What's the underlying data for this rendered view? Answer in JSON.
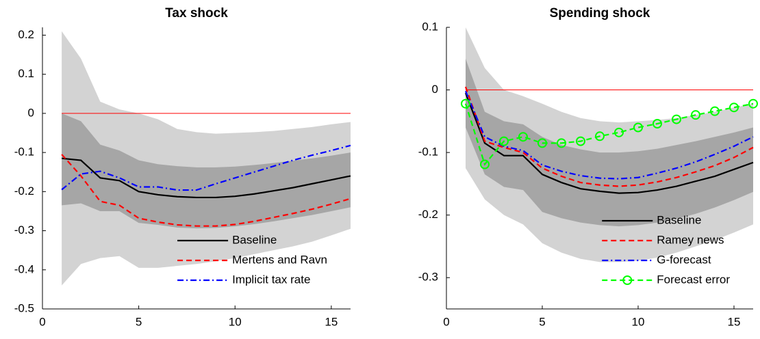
{
  "chart_data": [
    {
      "type": "line",
      "title": "Tax shock",
      "x": [
        1,
        2,
        3,
        4,
        5,
        6,
        7,
        8,
        9,
        10,
        11,
        12,
        13,
        14,
        15,
        16
      ],
      "xlim": [
        0,
        16
      ],
      "xticks": [
        0,
        5,
        10,
        15
      ],
      "ylim": [
        -0.5,
        0.22
      ],
      "yticks": [
        -0.5,
        -0.4,
        -0.3,
        -0.2,
        -0.1,
        0,
        0.1,
        0.2
      ],
      "hline": {
        "value": 0,
        "color": "#ff0000"
      },
      "legend": "lower right",
      "bands": [
        {
          "color": "#d3d3d3",
          "upper": [
            0.21,
            0.14,
            0.03,
            0.01,
            0,
            -0.015,
            -0.04,
            -0.048,
            -0.052,
            -0.05,
            -0.048,
            -0.045,
            -0.04,
            -0.035,
            -0.028,
            -0.022
          ],
          "lower": [
            -0.44,
            -0.385,
            -0.37,
            -0.365,
            -0.395,
            -0.395,
            -0.39,
            -0.385,
            -0.378,
            -0.37,
            -0.36,
            -0.35,
            -0.34,
            -0.328,
            -0.312,
            -0.295
          ]
        },
        {
          "color": "#a6a6a6",
          "upper": [
            0,
            -0.02,
            -0.08,
            -0.095,
            -0.12,
            -0.13,
            -0.135,
            -0.138,
            -0.138,
            -0.136,
            -0.132,
            -0.127,
            -0.121,
            -0.115,
            -0.108,
            -0.1
          ],
          "lower": [
            -0.235,
            -0.23,
            -0.25,
            -0.25,
            -0.28,
            -0.285,
            -0.292,
            -0.294,
            -0.293,
            -0.289,
            -0.283,
            -0.276,
            -0.268,
            -0.26,
            -0.25,
            -0.24
          ]
        }
      ],
      "series": [
        {
          "name": "Baseline",
          "color": "#000000",
          "linestyle": "solid",
          "values": [
            -0.115,
            -0.12,
            -0.165,
            -0.172,
            -0.2,
            -0.208,
            -0.213,
            -0.215,
            -0.215,
            -0.212,
            -0.206,
            -0.198,
            -0.19,
            -0.18,
            -0.17,
            -0.16
          ]
        },
        {
          "name": "Mertens and Ravn",
          "color": "#ff0000",
          "linestyle": "dashed",
          "values": [
            -0.105,
            -0.16,
            -0.225,
            -0.235,
            -0.268,
            -0.278,
            -0.285,
            -0.288,
            -0.288,
            -0.284,
            -0.276,
            -0.266,
            -0.256,
            -0.245,
            -0.232,
            -0.218
          ]
        },
        {
          "name": "Implicit tax rate",
          "color": "#0000ff",
          "linestyle": "dashdot",
          "values": [
            -0.195,
            -0.155,
            -0.148,
            -0.165,
            -0.188,
            -0.188,
            -0.196,
            -0.196,
            -0.18,
            -0.165,
            -0.15,
            -0.135,
            -0.12,
            -0.107,
            -0.095,
            -0.082
          ]
        }
      ]
    },
    {
      "type": "line",
      "title": "Spending shock",
      "x": [
        1,
        2,
        3,
        4,
        5,
        6,
        7,
        8,
        9,
        10,
        11,
        12,
        13,
        14,
        15,
        16
      ],
      "xlim": [
        0,
        16
      ],
      "xticks": [
        0,
        5,
        10,
        15
      ],
      "ylim": [
        -0.35,
        0.1
      ],
      "yticks": [
        -0.3,
        -0.2,
        -0.1,
        0,
        0.1
      ],
      "hline": {
        "value": 0,
        "color": "#ff0000"
      },
      "legend": "lower right",
      "bands": [
        {
          "color": "#d3d3d3",
          "upper": [
            0.1,
            0.035,
            0,
            -0.01,
            -0.022,
            -0.035,
            -0.045,
            -0.05,
            -0.052,
            -0.05,
            -0.048,
            -0.045,
            -0.04,
            -0.035,
            -0.028,
            -0.022
          ],
          "lower": [
            -0.125,
            -0.175,
            -0.2,
            -0.215,
            -0.245,
            -0.26,
            -0.27,
            -0.275,
            -0.275,
            -0.273,
            -0.268,
            -0.26,
            -0.25,
            -0.24,
            -0.228,
            -0.215
          ]
        },
        {
          "color": "#a6a6a6",
          "upper": [
            0.05,
            -0.035,
            -0.05,
            -0.055,
            -0.075,
            -0.088,
            -0.095,
            -0.1,
            -0.1,
            -0.098,
            -0.094,
            -0.088,
            -0.082,
            -0.075,
            -0.068,
            -0.06
          ],
          "lower": [
            -0.06,
            -0.135,
            -0.155,
            -0.16,
            -0.195,
            -0.205,
            -0.212,
            -0.216,
            -0.218,
            -0.216,
            -0.212,
            -0.206,
            -0.198,
            -0.188,
            -0.176,
            -0.163
          ]
        }
      ],
      "series": [
        {
          "name": "Baseline",
          "color": "#000000",
          "linestyle": "solid",
          "values": [
            -0.005,
            -0.085,
            -0.105,
            -0.105,
            -0.135,
            -0.148,
            -0.158,
            -0.162,
            -0.165,
            -0.164,
            -0.16,
            -0.154,
            -0.146,
            -0.138,
            -0.127,
            -0.116
          ]
        },
        {
          "name": "Ramey news",
          "color": "#ff0000",
          "linestyle": "dashed",
          "values": [
            0.005,
            -0.082,
            -0.092,
            -0.1,
            -0.125,
            -0.138,
            -0.148,
            -0.152,
            -0.154,
            -0.152,
            -0.147,
            -0.14,
            -0.131,
            -0.121,
            -0.108,
            -0.092
          ]
        },
        {
          "name": "G-forecast",
          "color": "#0000ff",
          "linestyle": "dashdot",
          "values": [
            -0.002,
            -0.075,
            -0.09,
            -0.097,
            -0.12,
            -0.13,
            -0.137,
            -0.141,
            -0.142,
            -0.14,
            -0.133,
            -0.125,
            -0.115,
            -0.103,
            -0.09,
            -0.075
          ]
        },
        {
          "name": "Forecast error",
          "color": "#00ff00",
          "linestyle": "dashed",
          "marker": "circle",
          "values": [
            -0.022,
            -0.119,
            -0.082,
            -0.075,
            -0.085,
            -0.085,
            -0.082,
            -0.074,
            -0.068,
            -0.06,
            -0.054,
            -0.047,
            -0.04,
            -0.034,
            -0.028,
            -0.022
          ]
        }
      ]
    }
  ]
}
